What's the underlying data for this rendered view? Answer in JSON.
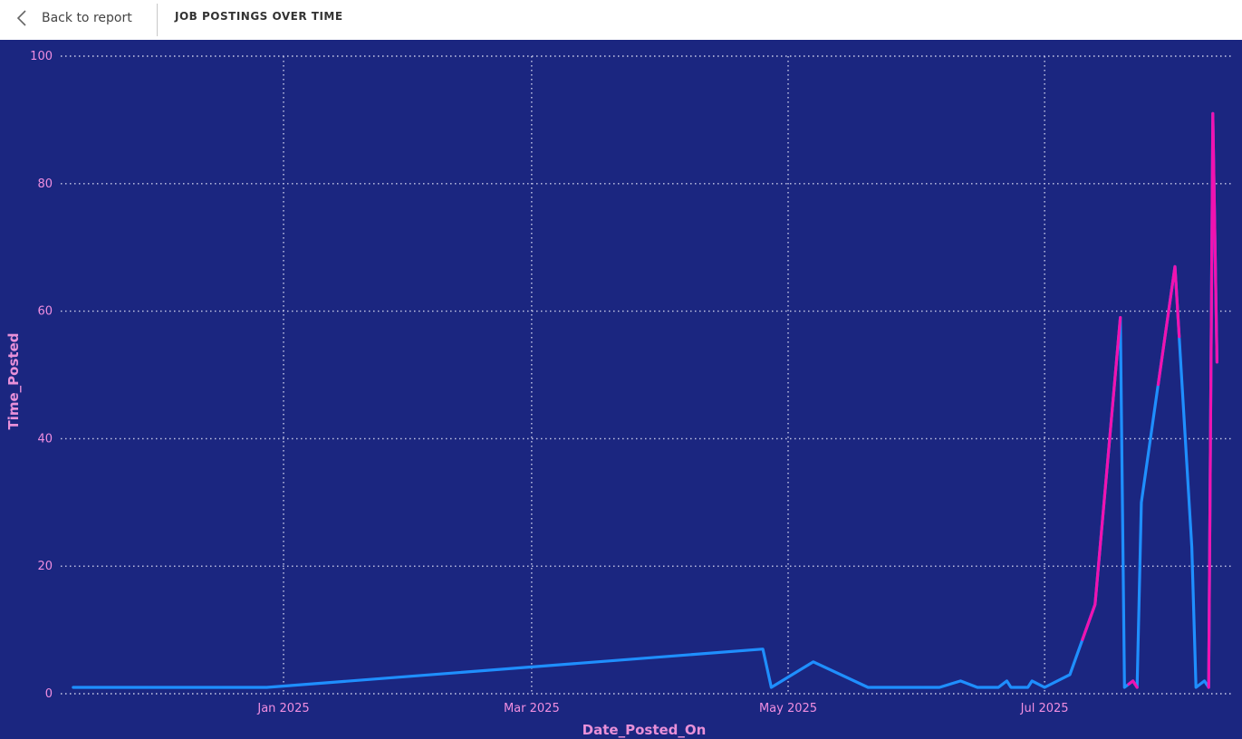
{
  "header": {
    "back_label": "Back to report",
    "title": "JOB POSTINGS OVER TIME"
  },
  "icons": {
    "back": "chevron-left-icon"
  },
  "colors": {
    "background": "#1b2680",
    "grid": "#c9cbe8",
    "tick_label": "#f08ee0",
    "axis_title": "#e890d8",
    "line_primary": "#1f8fff",
    "line_highlight": "#f012b0"
  },
  "chart_data": {
    "type": "line",
    "xlabel": "Date_Posted_On",
    "ylabel": "Time_Posted",
    "xlim": [
      "2024-11-09",
      "2025-08-15"
    ],
    "ylim": [
      0,
      100
    ],
    "yticks": [
      0,
      20,
      40,
      60,
      80,
      100
    ],
    "xticks": [
      {
        "date": "2025-01-01",
        "label": "Jan 2025"
      },
      {
        "date": "2025-03-01",
        "label": "Mar 2025"
      },
      {
        "date": "2025-05-01",
        "label": "May 2025"
      },
      {
        "date": "2025-07-01",
        "label": "Jul 2025"
      }
    ],
    "grid": true,
    "legend": "none",
    "points": [
      {
        "date": "2024-11-12",
        "value": 1
      },
      {
        "date": "2024-11-30",
        "value": 1
      },
      {
        "date": "2024-12-17",
        "value": 1
      },
      {
        "date": "2024-12-28",
        "value": 1
      },
      {
        "date": "2025-04-25",
        "value": 7
      },
      {
        "date": "2025-04-27",
        "value": 1
      },
      {
        "date": "2025-05-07",
        "value": 5
      },
      {
        "date": "2025-05-20",
        "value": 1
      },
      {
        "date": "2025-06-02",
        "value": 1
      },
      {
        "date": "2025-06-06",
        "value": 1
      },
      {
        "date": "2025-06-11",
        "value": 2
      },
      {
        "date": "2025-06-15",
        "value": 1
      },
      {
        "date": "2025-06-20",
        "value": 1
      },
      {
        "date": "2025-06-22",
        "value": 2
      },
      {
        "date": "2025-06-23",
        "value": 1
      },
      {
        "date": "2025-06-27",
        "value": 1
      },
      {
        "date": "2025-06-28",
        "value": 2
      },
      {
        "date": "2025-07-01",
        "value": 1
      },
      {
        "date": "2025-07-07",
        "value": 3
      },
      {
        "date": "2025-07-13",
        "value": 14
      },
      {
        "date": "2025-07-19",
        "value": 59
      },
      {
        "date": "2025-07-20",
        "value": 1
      },
      {
        "date": "2025-07-22",
        "value": 2
      },
      {
        "date": "2025-07-23",
        "value": 1
      },
      {
        "date": "2025-07-24",
        "value": 30
      },
      {
        "date": "2025-08-01",
        "value": 67
      },
      {
        "date": "2025-08-05",
        "value": 23
      },
      {
        "date": "2025-08-06",
        "value": 1
      },
      {
        "date": "2025-08-08",
        "value": 2
      },
      {
        "date": "2025-08-09",
        "value": 1
      },
      {
        "date": "2025-08-10",
        "value": 91
      },
      {
        "date": "2025-08-11",
        "value": 52
      }
    ],
    "highlight_ranges": [
      {
        "start": "2025-07-10",
        "end": "2025-07-19"
      },
      {
        "start": "2025-07-21",
        "end": "2025-07-23"
      },
      {
        "start": "2025-07-28",
        "end": "2025-08-02"
      },
      {
        "start": "2025-08-09",
        "end": "2025-08-11"
      }
    ]
  }
}
